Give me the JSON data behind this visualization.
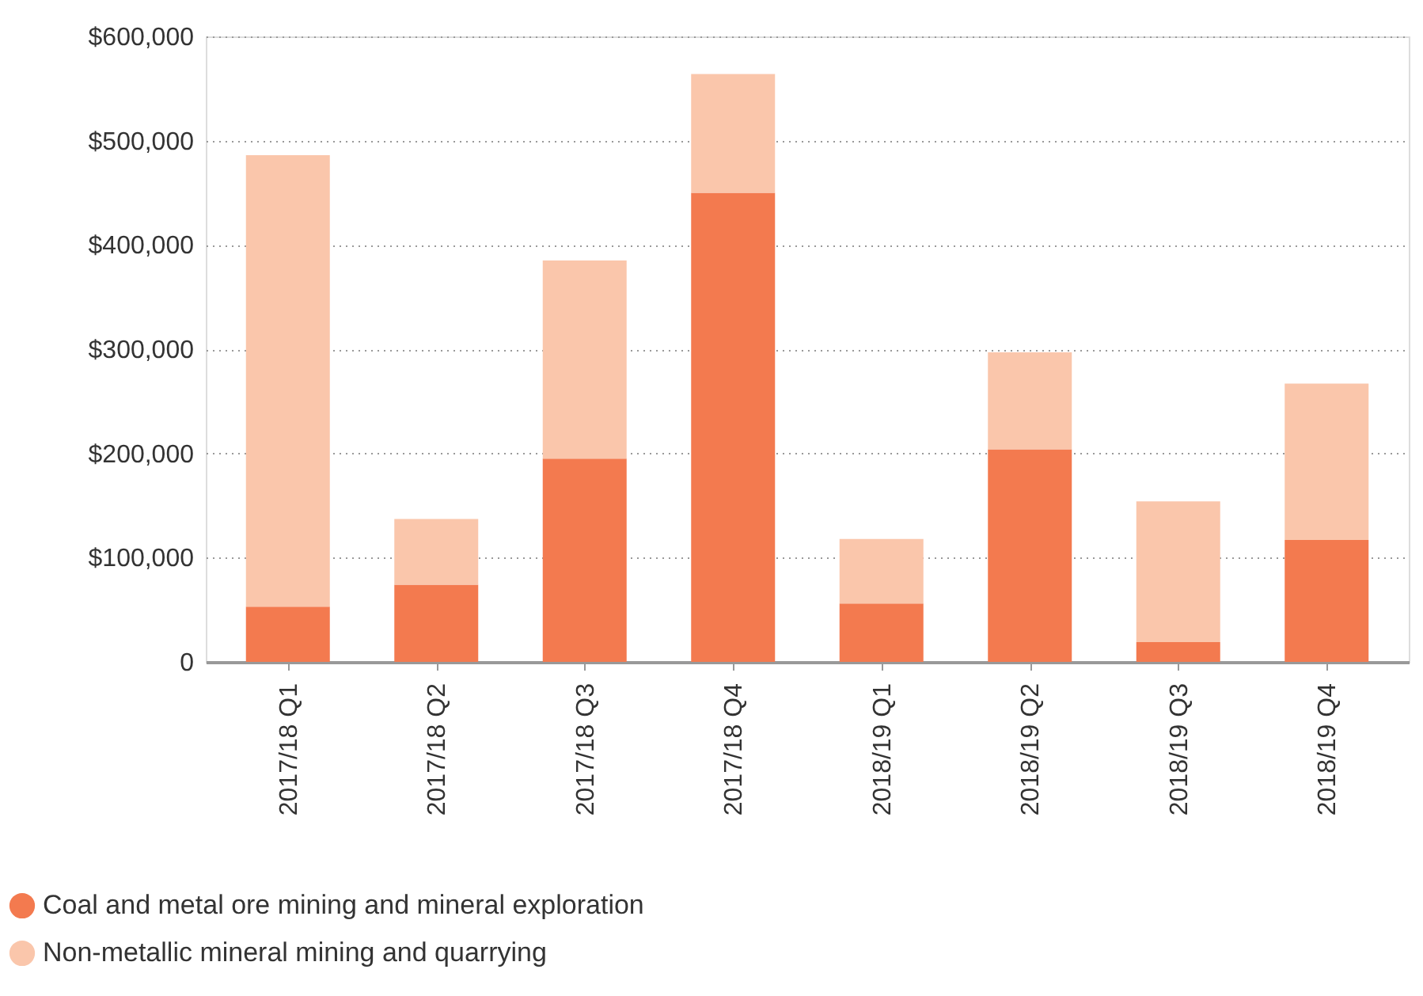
{
  "chart_data": {
    "type": "bar",
    "stacked": true,
    "categories": [
      "2017/18 Q1",
      "2017/18 Q2",
      "2017/18 Q3",
      "2017/18 Q4",
      "2018/19 Q1",
      "2018/19 Q2",
      "2018/19 Q3",
      "2018/19 Q4"
    ],
    "series": [
      {
        "name": "Coal and metal ore mining and mineral exploration",
        "color": "#f37a4f",
        "values": [
          53000,
          74000,
          195000,
          450000,
          56000,
          204000,
          19000,
          117000
        ]
      },
      {
        "name": "Non-metallic mineral mining and quarrying",
        "color": "#fac6ab",
        "values": [
          433000,
          63000,
          190000,
          114000,
          62000,
          93000,
          135000,
          150000
        ]
      }
    ],
    "ylim": [
      0,
      600000
    ],
    "yticks": [
      0,
      {
        "value": 100000,
        "label": "$100,000"
      },
      {
        "value": 200000,
        "label": "$200,000"
      },
      {
        "value": 300000,
        "label": "$300,000"
      },
      {
        "value": 400000,
        "label": "$400,000"
      },
      {
        "value": 500000,
        "label": "$500,000"
      },
      {
        "value": 600000,
        "label": "$600,000"
      }
    ],
    "grid": "y",
    "legend": "bottom left"
  }
}
